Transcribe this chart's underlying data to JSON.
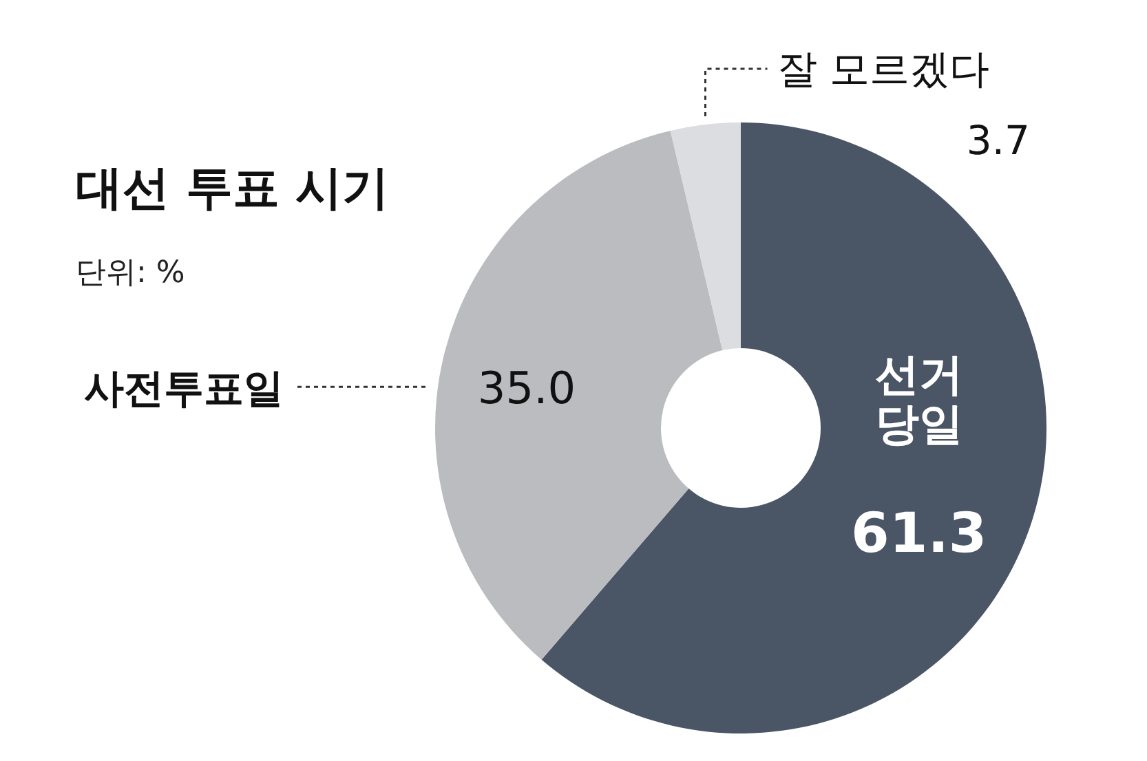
{
  "chart_data": {
    "type": "donut",
    "title": "대선 투표 시기",
    "subtitle": "단위: %",
    "categories": [
      "선거 당일",
      "사전투표일",
      "잘 모르겠다"
    ],
    "values": [
      61.3,
      35.0,
      3.7
    ],
    "colors": [
      "#4a5566",
      "#bbbcbf",
      "#dcdde0"
    ],
    "value_labels": [
      "61.3",
      "35.0",
      "3.7"
    ]
  }
}
